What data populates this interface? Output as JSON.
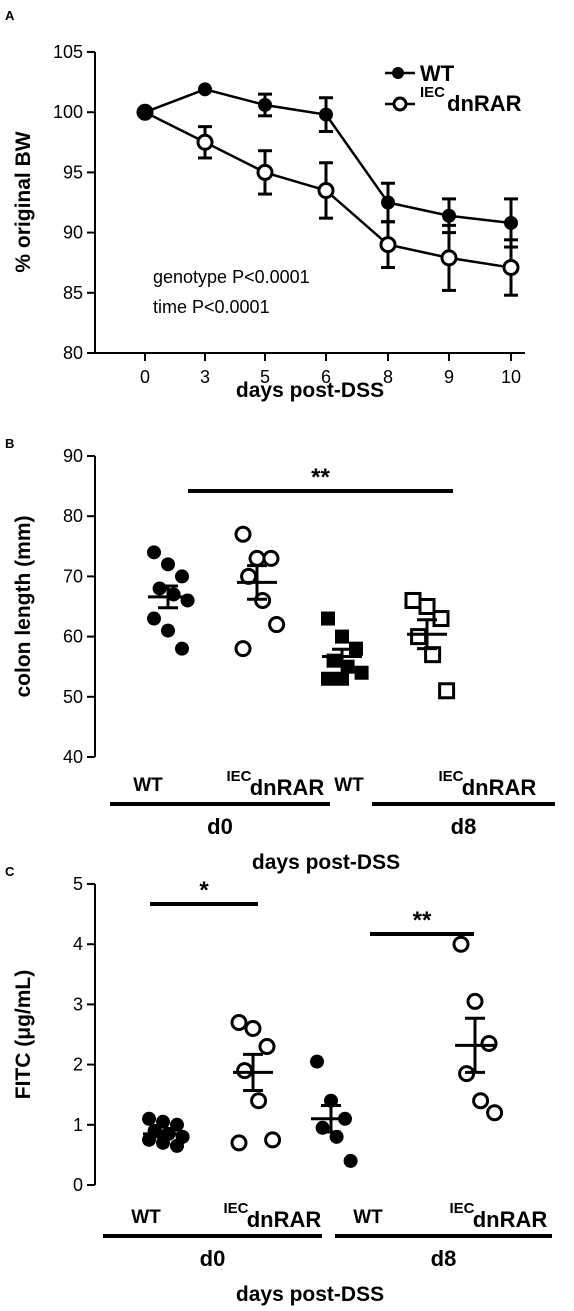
{
  "chart_data": [
    {
      "panel": "A",
      "type": "line",
      "x": [
        0,
        3,
        5,
        6,
        8,
        9,
        10
      ],
      "xlabel": "days post-DSS",
      "ylabel": "% original BW",
      "ylim": [
        80,
        105
      ],
      "yticks": [
        80,
        85,
        90,
        95,
        100,
        105
      ],
      "legend_position": "top-right",
      "series": [
        {
          "name": "WT",
          "marker": "filled-circle",
          "values": [
            100,
            101.9,
            100.6,
            99.8,
            92.5,
            91.4,
            90.8
          ],
          "sem": [
            0,
            0,
            0.9,
            1.4,
            1.6,
            1.4,
            2.0
          ]
        },
        {
          "name_sup": "IEC",
          "name_main": "dnRAR",
          "marker": "open-circle",
          "values": [
            100,
            97.5,
            95.0,
            93.5,
            89.0,
            87.9,
            87.1
          ],
          "sem": [
            0,
            1.3,
            1.8,
            2.3,
            1.9,
            2.7,
            2.3
          ]
        }
      ],
      "annotations": [
        "genotype P<0.0001",
        "time P<0.0001"
      ]
    },
    {
      "panel": "B",
      "type": "scatter",
      "ylabel": "colon length (mm)",
      "ylim": [
        40,
        90
      ],
      "yticks": [
        40,
        50,
        60,
        70,
        80,
        90
      ],
      "xlabel": "days post-DSS",
      "timepoints": [
        "d0",
        "d8"
      ],
      "groups": [
        {
          "label": "WT",
          "timepoint": "d0",
          "marker": "filled-circle",
          "points": [
            74,
            72,
            70,
            68,
            67,
            66,
            63,
            61,
            58
          ],
          "mean": 66.6,
          "sem": 1.8
        },
        {
          "label_sup": "IEC",
          "label_main": "dnRAR",
          "timepoint": "d0",
          "marker": "open-circle",
          "points": [
            77,
            73,
            73,
            70,
            66,
            62,
            58
          ],
          "mean": 69.0,
          "sem": 2.8
        },
        {
          "label": "WT",
          "timepoint": "d8",
          "marker": "filled-square",
          "points": [
            63,
            60,
            58,
            56,
            55,
            54,
            53,
            53
          ],
          "mean": 56.7,
          "sem": 1.2
        },
        {
          "label_sup": "IEC",
          "label_main": "dnRAR",
          "timepoint": "d8",
          "marker": "open-square",
          "points": [
            66,
            65,
            63,
            60,
            57,
            51
          ],
          "mean": 60.4,
          "sem": 2.4
        }
      ],
      "significance": [
        {
          "from": 0,
          "to": 2,
          "label": "**"
        }
      ]
    },
    {
      "panel": "C",
      "type": "scatter",
      "ylabel": "FITC (μg/mL)",
      "ylim": [
        0,
        5
      ],
      "yticks": [
        0,
        1,
        2,
        3,
        4,
        5
      ],
      "xlabel": "days post-DSS",
      "timepoints": [
        "d0",
        "d8"
      ],
      "groups": [
        {
          "label": "WT",
          "timepoint": "d0",
          "marker": "filled-circle",
          "points": [
            1.1,
            1.05,
            1.0,
            0.9,
            0.85,
            0.8,
            0.75,
            0.7,
            0.65
          ],
          "mean": 0.85,
          "sem": 0.05
        },
        {
          "label_sup": "IEC",
          "label_main": "dnRAR",
          "timepoint": "d0",
          "marker": "open-circle",
          "points": [
            2.7,
            2.6,
            2.3,
            1.9,
            1.4,
            0.75,
            0.7
          ],
          "mean": 1.87,
          "sem": 0.3
        },
        {
          "label": "WT",
          "timepoint": "d8",
          "marker": "filled-circle",
          "points": [
            2.05,
            1.4,
            1.1,
            0.95,
            0.8,
            0.4
          ],
          "mean": 1.1,
          "sem": 0.22
        },
        {
          "label_sup": "IEC",
          "label_main": "dnRAR",
          "timepoint": "d8",
          "marker": "open-circle",
          "points": [
            4.0,
            3.05,
            2.35,
            1.85,
            1.4,
            1.2
          ],
          "mean": 2.32,
          "sem": 0.45
        }
      ],
      "significance": [
        {
          "from": 0,
          "to": 1,
          "label": "*"
        },
        {
          "from": 2,
          "to": 3,
          "label": "**"
        }
      ]
    }
  ]
}
